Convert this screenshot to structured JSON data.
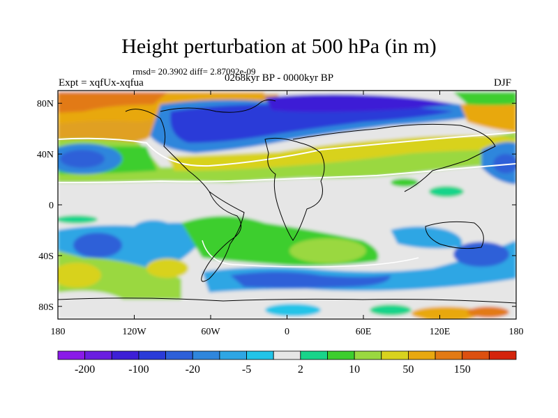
{
  "title": "Height perturbation at 500 hPa (in m)",
  "stats": "rmsd= 20.3902 diff= 2.87092e-09",
  "experiment": "Expt = xqfUx-xqfua",
  "period": "0268kyr BP - 0000kyr BP",
  "season": "DJF",
  "lat_labels": [
    "80N",
    "40N",
    "0",
    "40S",
    "80S"
  ],
  "lat_values": [
    80,
    40,
    0,
    -40,
    -80
  ],
  "lon_labels": [
    "180",
    "120W",
    "60W",
    "0",
    "60E",
    "120E",
    "180"
  ],
  "lon_values": [
    -180,
    -120,
    -60,
    0,
    60,
    120,
    180
  ],
  "colorbar": {
    "colors": [
      "#8a1ae8",
      "#6a1ee0",
      "#3d1fd6",
      "#2a3bd8",
      "#2d60d8",
      "#2f86dc",
      "#2ea6e4",
      "#22c4e8",
      "#e6e6e6",
      "#19d48a",
      "#3dce2e",
      "#9ad840",
      "#d8d21e",
      "#e8a810",
      "#e27a14",
      "#dc5010",
      "#d4240c"
    ],
    "labels": [
      "-200",
      "-100",
      "-20",
      "-5",
      "2",
      "10",
      "50",
      "150"
    ]
  }
}
